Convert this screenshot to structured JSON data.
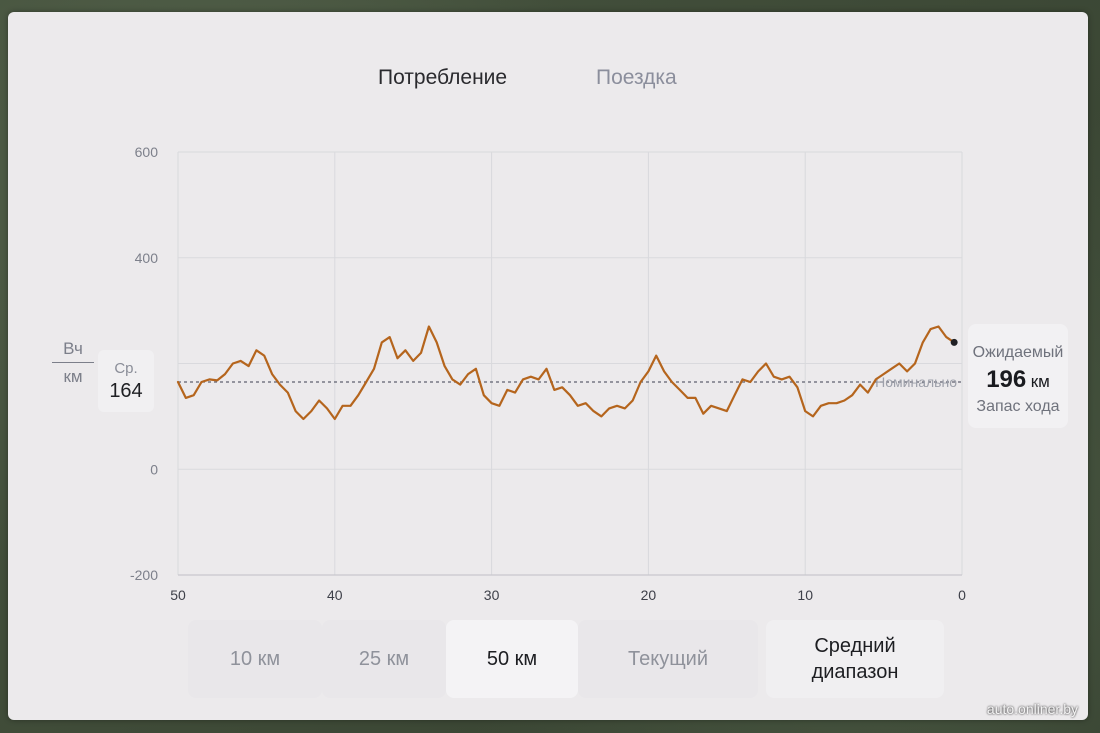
{
  "tabs": [
    {
      "label": "Потребление",
      "active": true
    },
    {
      "label": "Поездка",
      "active": false
    }
  ],
  "unit": {
    "numerator": "Вч",
    "denominator": "км"
  },
  "average": {
    "label": "Ср.",
    "value": "164"
  },
  "expected_range": {
    "line1": "Ожидаемый",
    "value": "196",
    "unit": "км",
    "line3": "Запас хода"
  },
  "range_buttons": [
    {
      "label": "10 км",
      "selected": false
    },
    {
      "label": "25 км",
      "selected": false
    },
    {
      "label": "50 км",
      "selected": true
    },
    {
      "label": "Текущий",
      "selected": false
    },
    {
      "label": "Средний диапазон",
      "selected": false
    }
  ],
  "watermark": "auto.onliner.by",
  "colors": {
    "line": "#b5651d",
    "grid": "#d9d9dd",
    "accent_dark": "#1d1e22"
  },
  "chart_data": {
    "type": "line",
    "ylim": [
      -200,
      600
    ],
    "yticks": [
      600,
      400,
      0,
      -200
    ],
    "xlim": [
      50,
      0
    ],
    "xticks": [
      50,
      40,
      30,
      20,
      10,
      0
    ],
    "reference_line": {
      "label": "Номинально",
      "value": 165
    },
    "series": [
      {
        "points": [
          [
            50,
            165
          ],
          [
            49.5,
            135
          ],
          [
            49,
            140
          ],
          [
            48.5,
            165
          ],
          [
            48,
            170
          ],
          [
            47.5,
            168
          ],
          [
            47,
            180
          ],
          [
            46.5,
            200
          ],
          [
            46,
            205
          ],
          [
            45.5,
            195
          ],
          [
            45,
            225
          ],
          [
            44.5,
            215
          ],
          [
            44,
            180
          ],
          [
            43.5,
            160
          ],
          [
            43,
            145
          ],
          [
            42.5,
            110
          ],
          [
            42,
            95
          ],
          [
            41.5,
            110
          ],
          [
            41,
            130
          ],
          [
            40.5,
            115
          ],
          [
            40,
            95
          ],
          [
            39.5,
            120
          ],
          [
            39,
            120
          ],
          [
            38.5,
            140
          ],
          [
            38,
            165
          ],
          [
            37.5,
            190
          ],
          [
            37,
            240
          ],
          [
            36.5,
            250
          ],
          [
            36,
            210
          ],
          [
            35.5,
            225
          ],
          [
            35,
            205
          ],
          [
            34.5,
            220
          ],
          [
            34,
            270
          ],
          [
            33.5,
            240
          ],
          [
            33,
            195
          ],
          [
            32.5,
            170
          ],
          [
            32,
            160
          ],
          [
            31.5,
            180
          ],
          [
            31,
            190
          ],
          [
            30.5,
            140
          ],
          [
            30,
            125
          ],
          [
            29.5,
            120
          ],
          [
            29,
            150
          ],
          [
            28.5,
            145
          ],
          [
            28,
            170
          ],
          [
            27.5,
            175
          ],
          [
            27,
            170
          ],
          [
            26.5,
            190
          ],
          [
            26,
            150
          ],
          [
            25.5,
            155
          ],
          [
            25,
            140
          ],
          [
            24.5,
            120
          ],
          [
            24,
            125
          ],
          [
            23.5,
            110
          ],
          [
            23,
            100
          ],
          [
            22.5,
            115
          ],
          [
            22,
            120
          ],
          [
            21.5,
            115
          ],
          [
            21,
            130
          ],
          [
            20.5,
            165
          ],
          [
            20,
            185
          ],
          [
            19.5,
            215
          ],
          [
            19,
            185
          ],
          [
            18.5,
            165
          ],
          [
            18,
            150
          ],
          [
            17.5,
            135
          ],
          [
            17,
            135
          ],
          [
            16.5,
            105
          ],
          [
            16,
            120
          ],
          [
            15.5,
            115
          ],
          [
            15,
            110
          ],
          [
            14.5,
            140
          ],
          [
            14,
            170
          ],
          [
            13.5,
            165
          ],
          [
            13,
            185
          ],
          [
            12.5,
            200
          ],
          [
            12,
            175
          ],
          [
            11.5,
            170
          ],
          [
            11,
            175
          ],
          [
            10.5,
            155
          ],
          [
            10,
            110
          ],
          [
            9.5,
            100
          ],
          [
            9,
            120
          ],
          [
            8.5,
            125
          ],
          [
            8,
            125
          ],
          [
            7.5,
            130
          ],
          [
            7,
            140
          ],
          [
            6.5,
            160
          ],
          [
            6,
            145
          ],
          [
            5.5,
            170
          ],
          [
            5,
            180
          ],
          [
            4.5,
            190
          ],
          [
            4,
            200
          ],
          [
            3.5,
            185
          ],
          [
            3,
            200
          ],
          [
            2.5,
            240
          ],
          [
            2,
            265
          ],
          [
            1.5,
            270
          ],
          [
            1,
            250
          ],
          [
            0.5,
            240
          ]
        ]
      }
    ]
  }
}
